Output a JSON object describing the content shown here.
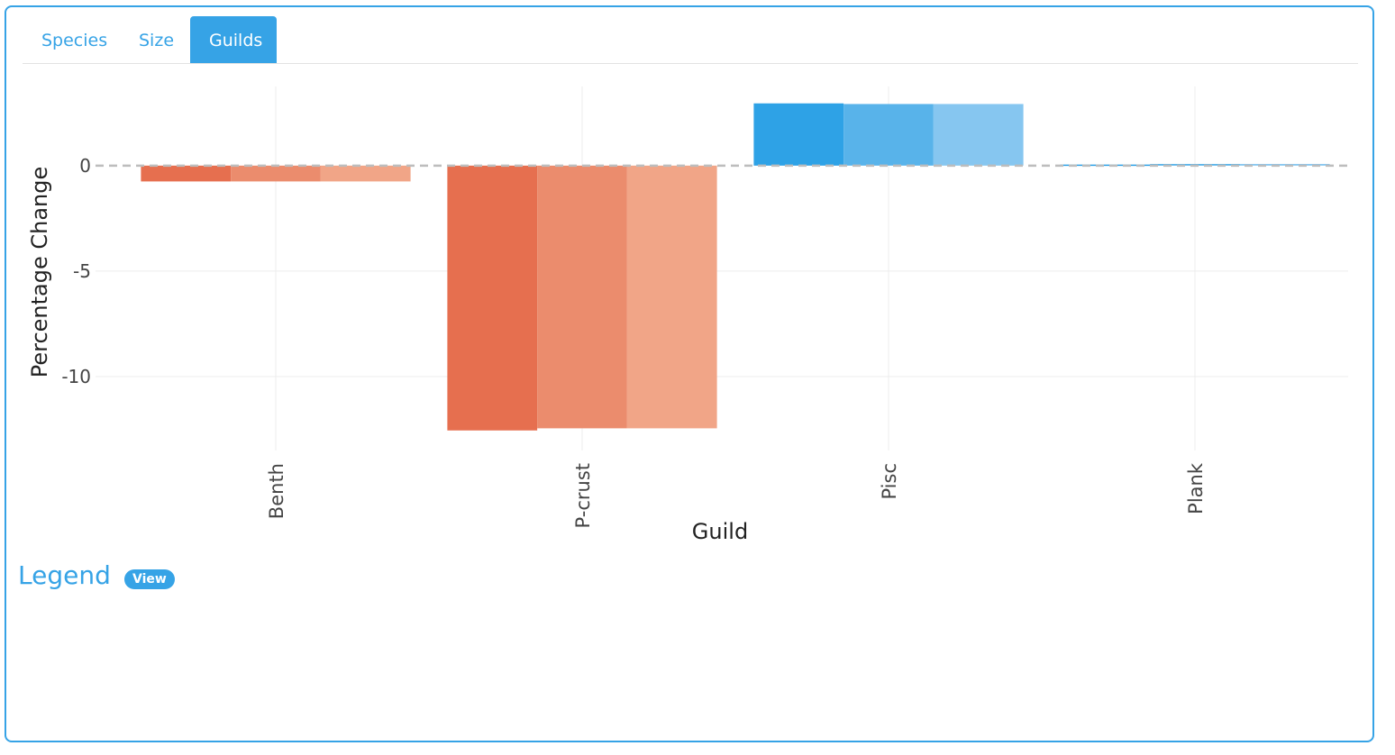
{
  "tabs": [
    {
      "label": "Species",
      "active": false
    },
    {
      "label": "Size",
      "active": false
    },
    {
      "label": "Guilds",
      "active": true
    }
  ],
  "legend": {
    "title": "Legend",
    "view_label": "View"
  },
  "colors": {
    "accent": "#36a3e6",
    "negative": [
      "#e66f4f",
      "#eb8c6d",
      "#f1a587"
    ],
    "positive": [
      "#2ea2e6",
      "#58b3ea",
      "#86c6f0"
    ],
    "zero_line": "#bdbdbd",
    "grid": "#ececec"
  },
  "chart_data": {
    "type": "bar",
    "barmode": "group",
    "categories": [
      "Benth",
      "P-crust",
      "Pisc",
      "Plank"
    ],
    "series": [
      {
        "values": [
          -0.75,
          -12.55,
          2.95,
          0.05
        ]
      },
      {
        "values": [
          -0.75,
          -12.45,
          2.92,
          0.08
        ]
      },
      {
        "values": [
          -0.75,
          -12.45,
          2.92,
          0.08
        ]
      }
    ],
    "xlabel": "Guild",
    "ylabel": "Percentage Change",
    "yticks": [
      0,
      -5,
      -10
    ],
    "ylim": [
      -13.5,
      3.75
    ],
    "grid": true,
    "zero_line": "dashed"
  }
}
